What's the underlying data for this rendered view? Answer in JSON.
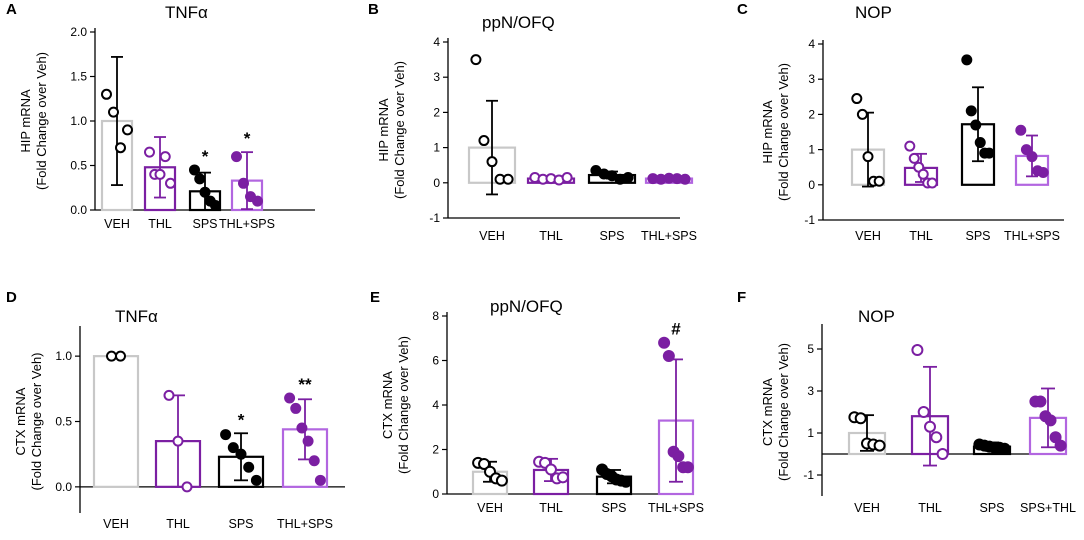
{
  "colors": {
    "veh_bar": "#c8c8c8",
    "black": "#000000",
    "purple": "#7b1fa2",
    "light_purple": "#b266e0"
  },
  "chart_data": [
    {
      "id": "A",
      "type": "bar",
      "title": "TNFα",
      "ylabel_line1": "HIP mRNA",
      "ylabel_line2": "(Fold Change over Veh)",
      "ylim": [
        0,
        2.0
      ],
      "yticks": [
        0.0,
        0.5,
        1.0,
        1.5,
        2.0
      ],
      "ytick_labels": [
        "0.0",
        "0.5",
        "1.0",
        "1.5",
        "2.0"
      ],
      "categories": [
        "VEH",
        "THL",
        "SPS",
        "THL+SPS"
      ],
      "means": [
        1.0,
        0.48,
        0.21,
        0.33
      ],
      "sd": [
        0.72,
        0.34,
        0.21,
        0.32
      ],
      "points": [
        [
          1.3,
          1.1,
          0.7,
          0.9
        ],
        [
          0.65,
          0.4,
          0.4,
          0.6,
          0.3
        ],
        [
          0.45,
          0.35,
          0.2,
          0.1,
          0.05
        ],
        [
          0.6,
          0.3,
          0.15,
          0.1
        ]
      ],
      "annotations": [
        "",
        "",
        "*",
        "*"
      ]
    },
    {
      "id": "B",
      "type": "bar",
      "title": "ppN/OFQ",
      "ylabel_line1": "HIP mRNA",
      "ylabel_line2": "(Fold  Change over Veh)",
      "ylim": [
        -1,
        4
      ],
      "yticks": [
        -1,
        0,
        1,
        2,
        3,
        4
      ],
      "ytick_labels": [
        "-1",
        "0",
        "1",
        "2",
        "3",
        "4"
      ],
      "categories": [
        "VEH",
        "THL",
        "SPS",
        "THL+SPS"
      ],
      "means": [
        1.0,
        0.12,
        0.22,
        0.12
      ],
      "sd": [
        1.33,
        0.05,
        0.1,
        0.03
      ],
      "points": [
        [
          3.5,
          1.2,
          0.6,
          0.1,
          0.1
        ],
        [
          0.15,
          0.1,
          0.12,
          0.08,
          0.15
        ],
        [
          0.35,
          0.25,
          0.2,
          0.1,
          0.15
        ],
        [
          0.12,
          0.1,
          0.13,
          0.12,
          0.1
        ]
      ],
      "annotations": [
        "",
        "",
        "",
        ""
      ]
    },
    {
      "id": "C",
      "type": "bar",
      "title": "NOP",
      "ylabel_line1": "HIP mRNA",
      "ylabel_line2": "(Fold Change over Veh)",
      "ylim": [
        -1,
        4
      ],
      "yticks": [
        -1,
        0,
        1,
        2,
        3,
        4
      ],
      "ytick_labels": [
        "-1",
        "0",
        "1",
        "2",
        "3",
        "4"
      ],
      "categories": [
        "VEH",
        "THL",
        "SPS",
        "THL+SPS"
      ],
      "means": [
        1.0,
        0.48,
        1.72,
        0.82
      ],
      "sd": [
        1.05,
        0.4,
        1.05,
        0.58
      ],
      "points": [
        [
          2.45,
          2.0,
          0.8,
          0.1,
          0.1
        ],
        [
          1.1,
          0.75,
          0.5,
          0.3,
          0.05,
          0.05
        ],
        [
          3.55,
          2.1,
          1.7,
          1.2,
          0.9,
          0.9
        ],
        [
          1.55,
          1.0,
          0.8,
          0.4,
          0.35
        ]
      ],
      "annotations": [
        "",
        "",
        "",
        ""
      ]
    },
    {
      "id": "D",
      "type": "bar",
      "title": "TNFα",
      "ylabel_line1": "CTX mRNA",
      "ylabel_line2": "(Fold Change over Veh)",
      "ylim": [
        -0.2,
        1.2
      ],
      "yticks": [
        0.0,
        0.5,
        1.0
      ],
      "ytick_labels": [
        "0.0",
        "0.5",
        "1.0"
      ],
      "categories": [
        "VEH",
        "THL",
        "SPS",
        "THL+SPS"
      ],
      "means": [
        1.0,
        0.35,
        0.23,
        0.44
      ],
      "sd": [
        0.01,
        0.35,
        0.18,
        0.23
      ],
      "points": [
        [
          1.0,
          1.0
        ],
        [
          0.7,
          0.35,
          0.0
        ],
        [
          0.4,
          0.3,
          0.25,
          0.15,
          0.05
        ],
        [
          0.68,
          0.6,
          0.45,
          0.35,
          0.2,
          0.05
        ]
      ],
      "annotations": [
        "",
        "",
        "*",
        "**"
      ]
    },
    {
      "id": "E",
      "type": "bar",
      "title": "ppN/OFQ",
      "ylabel_line1": "CTX mRNA",
      "ylabel_line2": "(Fold Change over Veh)",
      "ylim": [
        0,
        8
      ],
      "yticks": [
        0,
        2,
        4,
        6,
        8
      ],
      "ytick_labels": [
        "0",
        "2",
        "4",
        "6",
        "8"
      ],
      "categories": [
        "VEH",
        "THL",
        "SPS",
        "THL+SPS"
      ],
      "means": [
        1.0,
        1.08,
        0.78,
        3.3
      ],
      "sd": [
        0.45,
        0.5,
        0.3,
        2.75
      ],
      "points": [
        [
          1.4,
          1.35,
          1.0,
          0.7,
          0.6
        ],
        [
          1.45,
          1.4,
          1.1,
          0.7,
          0.75
        ],
        [
          1.1,
          0.9,
          0.8,
          0.65,
          0.6,
          0.55
        ],
        [
          6.8,
          6.2,
          1.9,
          1.7,
          1.2,
          1.2
        ]
      ],
      "annotations": [
        "",
        "",
        "",
        "#"
      ]
    },
    {
      "id": "F",
      "type": "bar",
      "title": "NOP",
      "ylabel_line1": "CTX mRNA",
      "ylabel_line2": "(Fold Change over Veh)",
      "ylim": [
        -2,
        6
      ],
      "yticks": [
        -1,
        1,
        3,
        5
      ],
      "ytick_labels": [
        "-1",
        "1",
        "3",
        "5"
      ],
      "categories": [
        "VEH",
        "THL",
        "SPS",
        "SPS+THL"
      ],
      "means": [
        1.0,
        1.8,
        0.35,
        1.72
      ],
      "sd": [
        0.85,
        2.35,
        0.2,
        1.4
      ],
      "points": [
        [
          1.75,
          1.7,
          0.5,
          0.45,
          0.4
        ],
        [
          4.95,
          2.0,
          1.3,
          0.8,
          0.0
        ],
        [
          0.45,
          0.4,
          0.35,
          0.3,
          0.3,
          0.25
        ],
        [
          2.5,
          2.5,
          1.8,
          1.6,
          0.8,
          0.4
        ]
      ],
      "annotations": [
        "",
        "",
        "",
        ""
      ]
    }
  ]
}
